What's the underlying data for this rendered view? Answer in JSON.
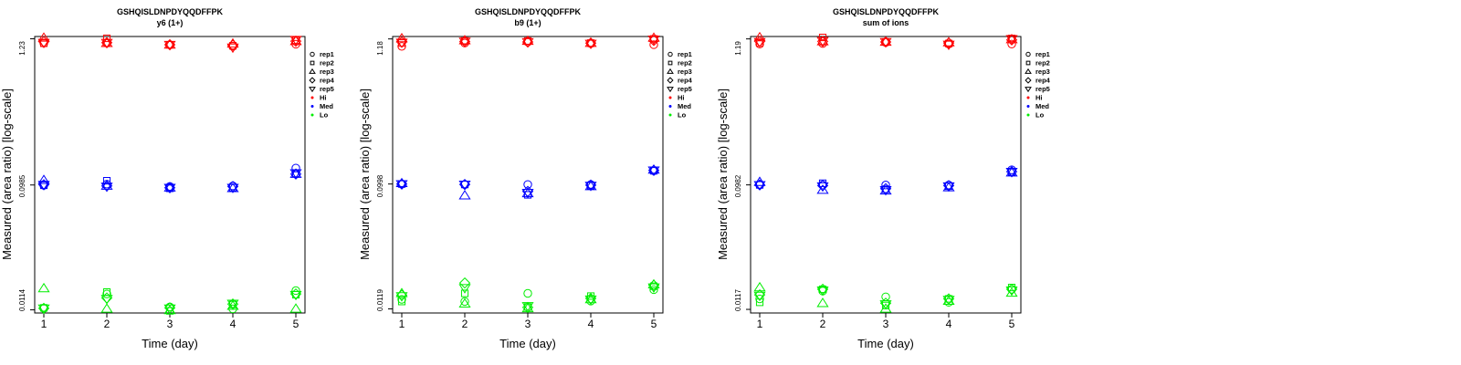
{
  "legend": {
    "replicates": [
      {
        "label": "rep1",
        "symbol": "circle"
      },
      {
        "label": "rep2",
        "symbol": "square"
      },
      {
        "label": "rep3",
        "symbol": "triangle-up"
      },
      {
        "label": "rep4",
        "symbol": "diamond"
      },
      {
        "label": "rep5",
        "symbol": "triangle-down"
      }
    ],
    "groups": [
      {
        "label": "Hi",
        "color": "#ff0000"
      },
      {
        "label": "Med",
        "color": "#0000ff"
      },
      {
        "label": "Lo",
        "color": "#00ee00"
      }
    ],
    "placement": "right-top"
  },
  "chart_data": [
    {
      "type": "scatter",
      "title": "GSHQISLDNPDYQQDFFPK",
      "subtitle": "y6 (1+)",
      "xlabel": "Time (day)",
      "ylabel": "Measured (area ratio) [log-scale]",
      "x_ticks": [
        "1",
        "2",
        "3",
        "4",
        "5"
      ],
      "y_scale": "log",
      "y_ticks": [
        {
          "value": 0.0114,
          "label": "0.0114"
        },
        {
          "value": 0.0985,
          "label": "0.0985"
        },
        {
          "value": 1.23,
          "label": "1.23"
        }
      ],
      "ylim": [
        0.0108,
        1.28
      ],
      "series": [
        {
          "group": "Hi",
          "rep": "rep1",
          "x": [
            1,
            2,
            3,
            4,
            5
          ],
          "y": [
            1.14,
            1.14,
            1.11,
            1.08,
            1.12
          ]
        },
        {
          "group": "Hi",
          "rep": "rep2",
          "x": [
            1,
            2,
            3,
            4,
            5
          ],
          "y": [
            1.14,
            1.24,
            1.11,
            1.09,
            1.2
          ]
        },
        {
          "group": "Hi",
          "rep": "rep3",
          "x": [
            1,
            2,
            3,
            4,
            5
          ],
          "y": [
            1.25,
            1.14,
            1.11,
            1.13,
            1.18
          ]
        },
        {
          "group": "Hi",
          "rep": "rep4",
          "x": [
            1,
            2,
            3,
            4,
            5
          ],
          "y": [
            1.17,
            1.15,
            1.11,
            1.1,
            1.18
          ]
        },
        {
          "group": "Hi",
          "rep": "rep5",
          "x": [
            1,
            2,
            3,
            4,
            5
          ],
          "y": [
            1.15,
            1.15,
            1.11,
            1.06,
            1.21
          ]
        },
        {
          "group": "Med",
          "rep": "rep1",
          "x": [
            1,
            2,
            3,
            4,
            5
          ],
          "y": [
            0.098,
            0.1,
            0.096,
            0.097,
            0.132
          ]
        },
        {
          "group": "Med",
          "rep": "rep2",
          "x": [
            1,
            2,
            3,
            4,
            5
          ],
          "y": [
            0.098,
            0.106,
            0.093,
            0.094,
            0.12
          ]
        },
        {
          "group": "Med",
          "rep": "rep3",
          "x": [
            1,
            2,
            3,
            4,
            5
          ],
          "y": [
            0.107,
            0.097,
            0.094,
            0.093,
            0.119
          ]
        },
        {
          "group": "Med",
          "rep": "rep4",
          "x": [
            1,
            2,
            3,
            4,
            5
          ],
          "y": [
            0.099,
            0.097,
            0.094,
            0.096,
            0.119
          ]
        },
        {
          "group": "Med",
          "rep": "rep5",
          "x": [
            1,
            2,
            3,
            4,
            5
          ],
          "y": [
            0.099,
            0.096,
            0.094,
            0.094,
            0.121
          ]
        },
        {
          "group": "Lo",
          "rep": "rep1",
          "x": [
            1,
            2,
            3,
            4,
            5
          ],
          "y": [
            0.0117,
            0.015,
            0.012,
            0.0116,
            0.0159
          ]
        },
        {
          "group": "Lo",
          "rep": "rep2",
          "x": [
            1,
            2,
            3,
            4,
            5
          ],
          "y": [
            0.0118,
            0.0155,
            0.0112,
            0.0125,
            0.0148
          ]
        },
        {
          "group": "Lo",
          "rep": "rep3",
          "x": [
            1,
            2,
            3,
            4,
            5
          ],
          "y": [
            0.0165,
            0.0116,
            0.0113,
            0.0122,
            0.0116
          ]
        },
        {
          "group": "Lo",
          "rep": "rep4",
          "x": [
            1,
            2,
            3,
            4,
            5
          ],
          "y": [
            0.0117,
            0.014,
            0.0118,
            0.0126,
            0.015
          ]
        },
        {
          "group": "Lo",
          "rep": "rep5",
          "x": [
            1,
            2,
            3,
            4,
            5
          ],
          "y": [
            0.0117,
            0.0138,
            0.0117,
            0.0127,
            0.0148
          ]
        }
      ]
    },
    {
      "type": "scatter",
      "title": "GSHQISLDNPDYQQDFFPK",
      "subtitle": "b9 (1+)",
      "xlabel": "Time (day)",
      "ylabel": "Measured (area ratio) [log-scale]",
      "x_ticks": [
        "1",
        "2",
        "3",
        "4",
        "5"
      ],
      "y_scale": "log",
      "y_ticks": [
        {
          "value": 0.0119,
          "label": "0.0119"
        },
        {
          "value": 0.0998,
          "label": "0.0998"
        },
        {
          "value": 1.18,
          "label": "1.18"
        }
      ],
      "ylim": [
        0.0111,
        1.23
      ],
      "series": [
        {
          "group": "Hi",
          "rep": "rep1",
          "x": [
            1,
            2,
            3,
            4,
            5
          ],
          "y": [
            1.04,
            1.1,
            1.12,
            1.09,
            1.07
          ]
        },
        {
          "group": "Hi",
          "rep": "rep2",
          "x": [
            1,
            2,
            3,
            4,
            5
          ],
          "y": [
            1.1,
            1.14,
            1.14,
            1.1,
            1.18
          ]
        },
        {
          "group": "Hi",
          "rep": "rep3",
          "x": [
            1,
            2,
            3,
            4,
            5
          ],
          "y": [
            1.19,
            1.15,
            1.14,
            1.1,
            1.2
          ]
        },
        {
          "group": "Hi",
          "rep": "rep4",
          "x": [
            1,
            2,
            3,
            4,
            5
          ],
          "y": [
            1.12,
            1.13,
            1.12,
            1.1,
            1.15
          ]
        },
        {
          "group": "Hi",
          "rep": "rep5",
          "x": [
            1,
            2,
            3,
            4,
            5
          ],
          "y": [
            1.11,
            1.13,
            1.12,
            1.09,
            1.17
          ]
        },
        {
          "group": "Med",
          "rep": "rep1",
          "x": [
            1,
            2,
            3,
            4,
            5
          ],
          "y": [
            0.0998,
            0.099,
            0.099,
            0.099,
            0.125
          ]
        },
        {
          "group": "Med",
          "rep": "rep2",
          "x": [
            1,
            2,
            3,
            4,
            5
          ],
          "y": [
            0.0998,
            0.099,
            0.083,
            0.097,
            0.125
          ]
        },
        {
          "group": "Med",
          "rep": "rep3",
          "x": [
            1,
            2,
            3,
            4,
            5
          ],
          "y": [
            0.101,
            0.082,
            0.085,
            0.096,
            0.127
          ]
        },
        {
          "group": "Med",
          "rep": "rep4",
          "x": [
            1,
            2,
            3,
            4,
            5
          ],
          "y": [
            0.0998,
            0.099,
            0.088,
            0.098,
            0.126
          ]
        },
        {
          "group": "Med",
          "rep": "rep5",
          "x": [
            1,
            2,
            3,
            4,
            5
          ],
          "y": [
            0.0998,
            0.099,
            0.086,
            0.097,
            0.126
          ]
        },
        {
          "group": "Lo",
          "rep": "rep1",
          "x": [
            1,
            2,
            3,
            4,
            5
          ],
          "y": [
            0.014,
            0.0135,
            0.0155,
            0.0136,
            0.0165
          ]
        },
        {
          "group": "Lo",
          "rep": "rep2",
          "x": [
            1,
            2,
            3,
            4,
            5
          ],
          "y": [
            0.0135,
            0.0155,
            0.0123,
            0.0148,
            0.0175
          ]
        },
        {
          "group": "Lo",
          "rep": "rep3",
          "x": [
            1,
            2,
            3,
            4,
            5
          ],
          "y": [
            0.0155,
            0.013,
            0.012,
            0.014,
            0.018
          ]
        },
        {
          "group": "Lo",
          "rep": "rep4",
          "x": [
            1,
            2,
            3,
            4,
            5
          ],
          "y": [
            0.015,
            0.0185,
            0.0122,
            0.0142,
            0.0178
          ]
        },
        {
          "group": "Lo",
          "rep": "rep5",
          "x": [
            1,
            2,
            3,
            4,
            5
          ],
          "y": [
            0.0148,
            0.017,
            0.0125,
            0.014,
            0.0172
          ]
        }
      ]
    },
    {
      "type": "scatter",
      "title": "GSHQISLDNPDYQQDFFPK",
      "subtitle": "sum of ions",
      "xlabel": "Time (day)",
      "ylabel": "Measured (area ratio) [log-scale]",
      "x_ticks": [
        "1",
        "2",
        "3",
        "4",
        "5"
      ],
      "y_scale": "log",
      "y_ticks": [
        {
          "value": 0.0117,
          "label": "0.0117"
        },
        {
          "value": 0.0982,
          "label": "0.0982"
        },
        {
          "value": 1.19,
          "label": "1.19"
        }
      ],
      "ylim": [
        0.011,
        1.24
      ],
      "series": [
        {
          "group": "Hi",
          "rep": "rep1",
          "x": [
            1,
            2,
            3,
            4,
            5
          ],
          "y": [
            1.09,
            1.1,
            1.12,
            1.09,
            1.09
          ]
        },
        {
          "group": "Hi",
          "rep": "rep2",
          "x": [
            1,
            2,
            3,
            4,
            5
          ],
          "y": [
            1.11,
            1.22,
            1.13,
            1.1,
            1.2
          ]
        },
        {
          "group": "Hi",
          "rep": "rep3",
          "x": [
            1,
            2,
            3,
            4,
            5
          ],
          "y": [
            1.22,
            1.14,
            1.13,
            1.12,
            1.18
          ]
        },
        {
          "group": "Hi",
          "rep": "rep4",
          "x": [
            1,
            2,
            3,
            4,
            5
          ],
          "y": [
            1.14,
            1.14,
            1.13,
            1.11,
            1.17
          ]
        },
        {
          "group": "Hi",
          "rep": "rep5",
          "x": [
            1,
            2,
            3,
            4,
            5
          ],
          "y": [
            1.13,
            1.15,
            1.13,
            1.08,
            1.19
          ]
        },
        {
          "group": "Med",
          "rep": "rep1",
          "x": [
            1,
            2,
            3,
            4,
            5
          ],
          "y": [
            0.0982,
            0.098,
            0.098,
            0.098,
            0.127
          ]
        },
        {
          "group": "Med",
          "rep": "rep2",
          "x": [
            1,
            2,
            3,
            4,
            5
          ],
          "y": [
            0.0982,
            0.101,
            0.091,
            0.096,
            0.122
          ]
        },
        {
          "group": "Med",
          "rep": "rep3",
          "x": [
            1,
            2,
            3,
            4,
            5
          ],
          "y": [
            0.103,
            0.09,
            0.089,
            0.094,
            0.121
          ]
        },
        {
          "group": "Med",
          "rep": "rep4",
          "x": [
            1,
            2,
            3,
            4,
            5
          ],
          "y": [
            0.0982,
            0.097,
            0.092,
            0.097,
            0.123
          ]
        },
        {
          "group": "Med",
          "rep": "rep5",
          "x": [
            1,
            2,
            3,
            4,
            5
          ],
          "y": [
            0.0982,
            0.096,
            0.09,
            0.096,
            0.123
          ]
        },
        {
          "group": "Lo",
          "rep": "rep1",
          "x": [
            1,
            2,
            3,
            4,
            5
          ],
          "y": [
            0.014,
            0.016,
            0.0145,
            0.0132,
            0.0165
          ]
        },
        {
          "group": "Lo",
          "rep": "rep2",
          "x": [
            1,
            2,
            3,
            4,
            5
          ],
          "y": [
            0.0132,
            0.0165,
            0.0125,
            0.014,
            0.017
          ]
        },
        {
          "group": "Lo",
          "rep": "rep3",
          "x": [
            1,
            2,
            3,
            4,
            5
          ],
          "y": [
            0.017,
            0.013,
            0.0118,
            0.0135,
            0.0155
          ]
        },
        {
          "group": "Lo",
          "rep": "rep4",
          "x": [
            1,
            2,
            3,
            4,
            5
          ],
          "y": [
            0.015,
            0.0165,
            0.013,
            0.014,
            0.0165
          ]
        },
        {
          "group": "Lo",
          "rep": "rep5",
          "x": [
            1,
            2,
            3,
            4,
            5
          ],
          "y": [
            0.0148,
            0.0162,
            0.0128,
            0.0138,
            0.0162
          ]
        }
      ]
    }
  ]
}
